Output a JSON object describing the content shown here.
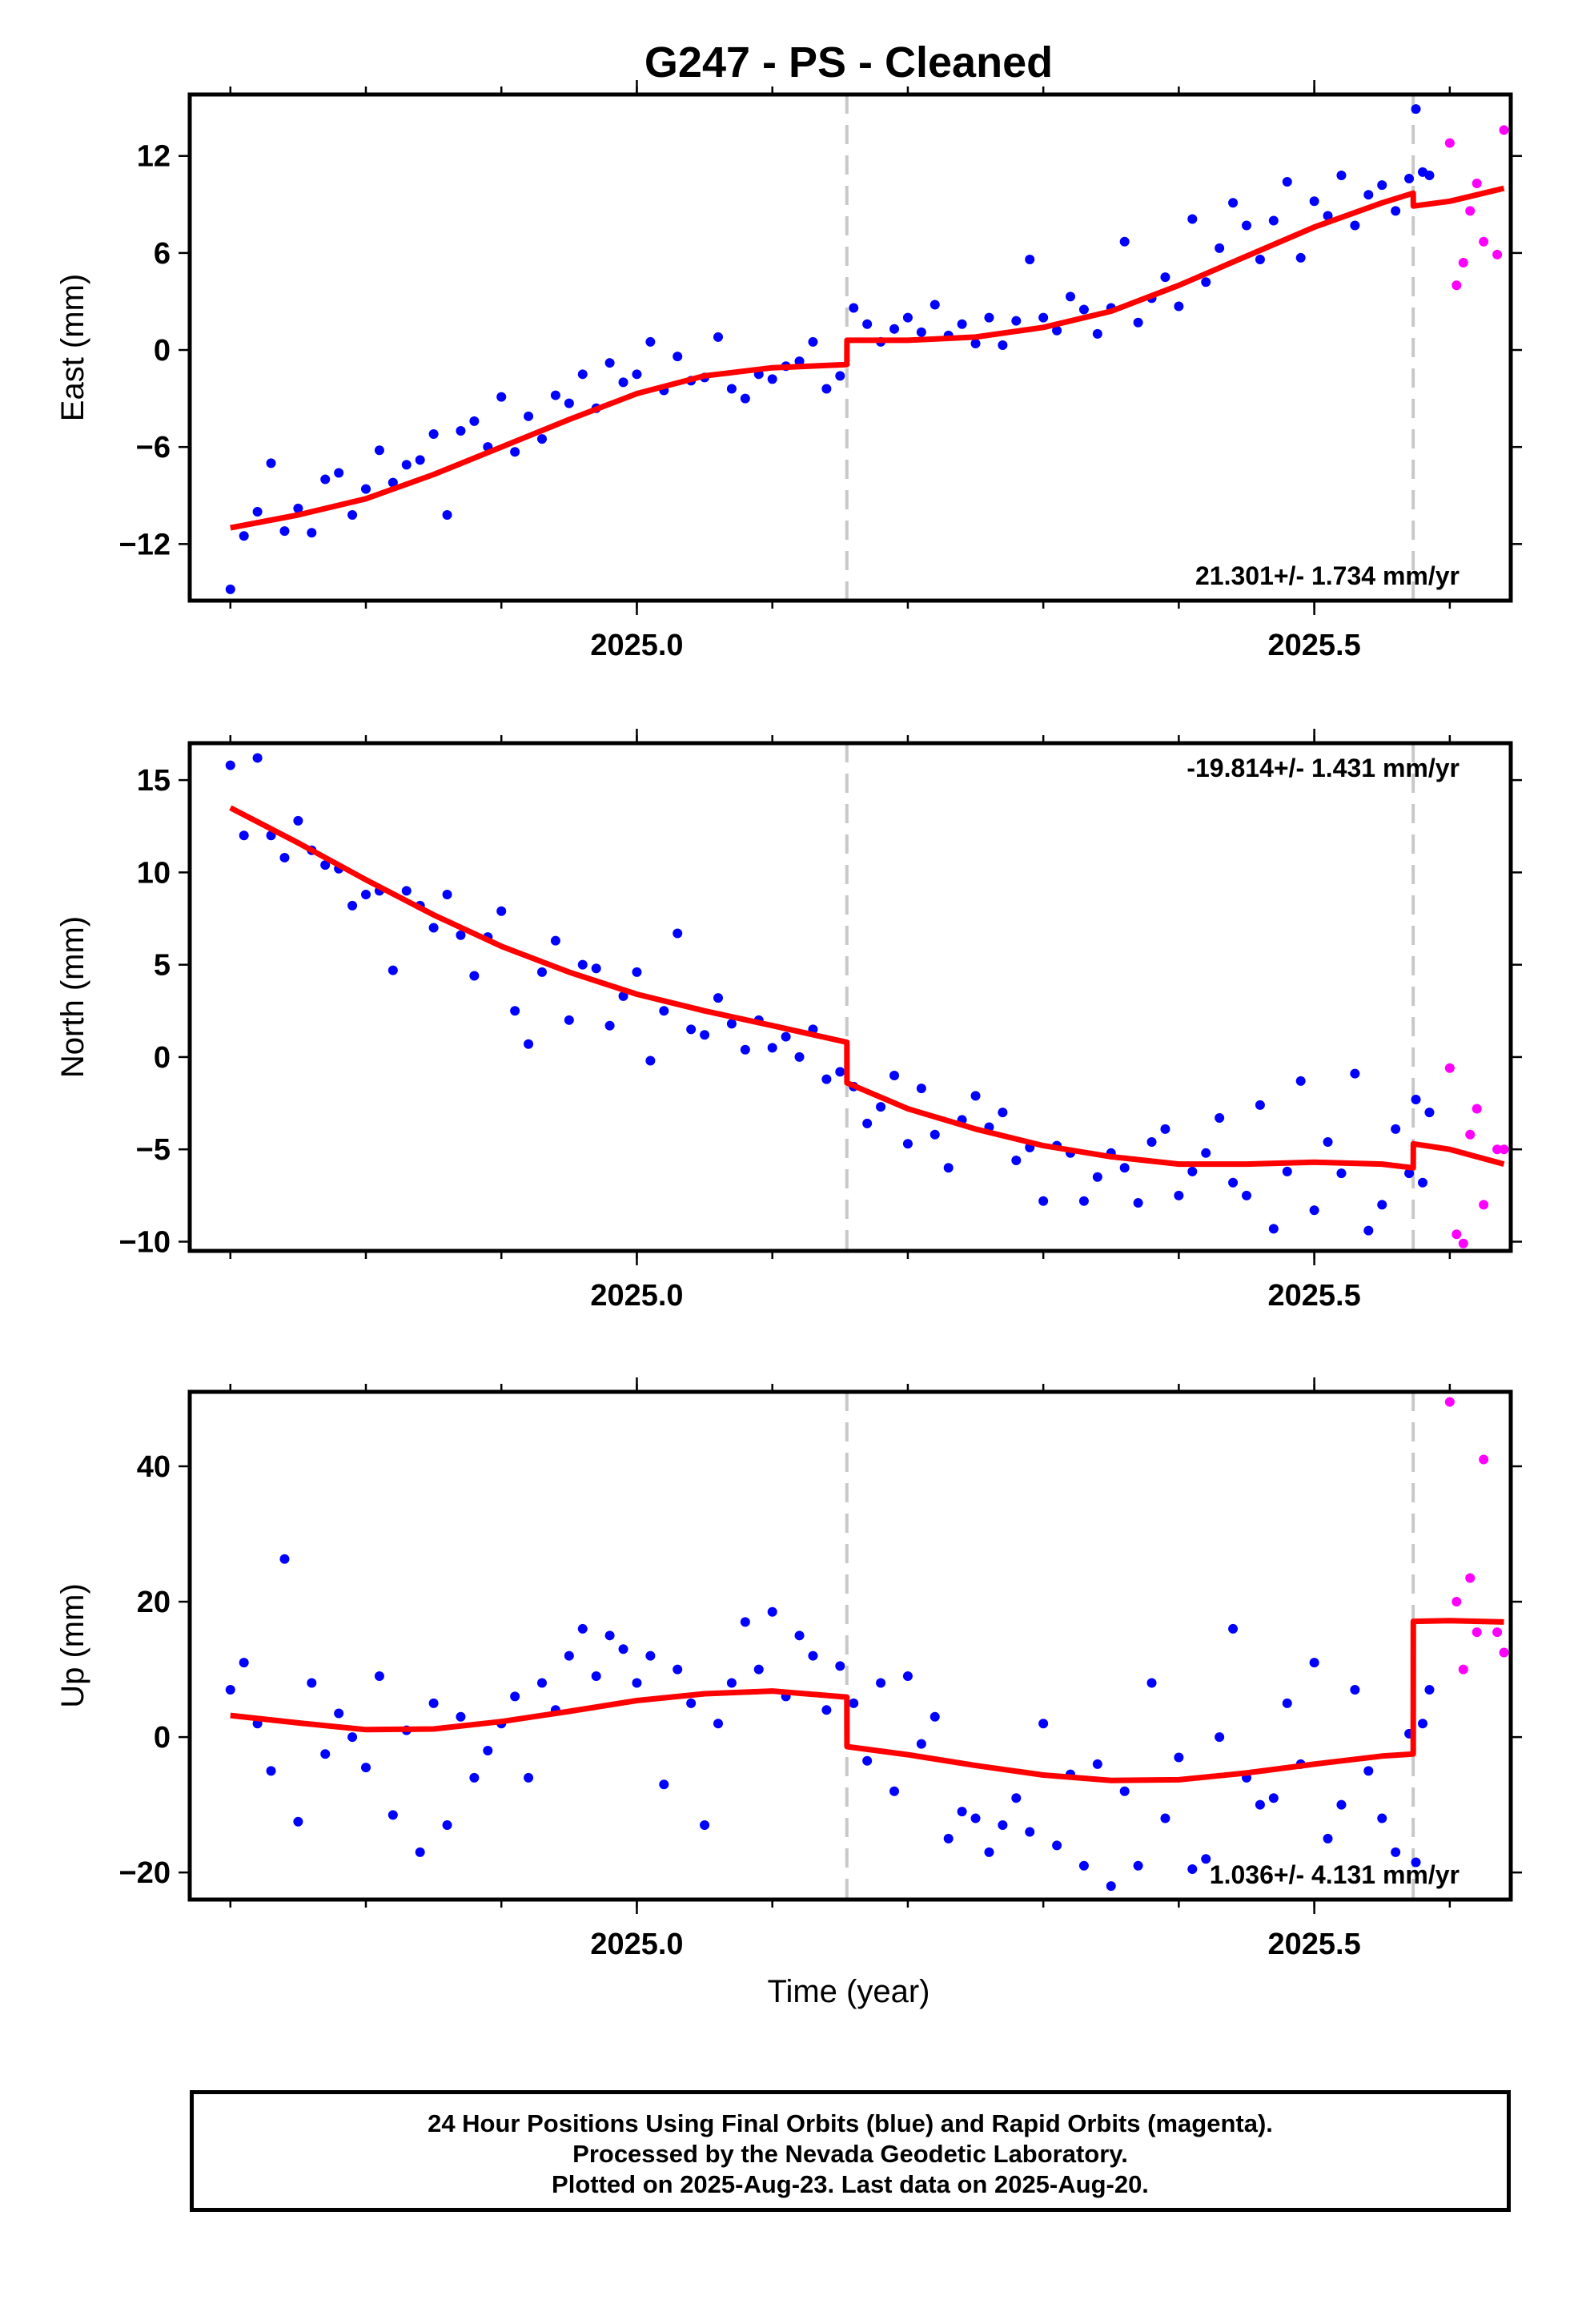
{
  "title": "G247  - PS - Cleaned",
  "x_axis_label": "Time (year)",
  "footer": {
    "line1": "24 Hour Positions Using Final Orbits (blue) and Rapid Orbits (magenta).",
    "line2": "Processed by the Nevada Geodetic Laboratory.",
    "line3": "Plotted on 2025-Aug-23. Last data on 2025-Aug-20."
  },
  "colors": {
    "final_orbits": "#0000ff",
    "rapid_orbits": "#ff00ff",
    "model_fit": "#ff0000",
    "steps": "#c8c8c8"
  },
  "chart_data": [
    {
      "type": "scatter",
      "component": "East",
      "ylabel": "East (mm)",
      "xlim": [
        2024.67,
        2025.645
      ],
      "ylim": [
        -15.5,
        15.8
      ],
      "xticks": [
        2025.0,
        2025.5
      ],
      "yticks": [
        -12,
        -6,
        0,
        6,
        12
      ],
      "ytick_labels": [
        "−12",
        "−6",
        "0",
        "6",
        "12"
      ],
      "step_epochs": [
        2025.155,
        2025.573
      ],
      "rate_label": "21.301+/- 1.734 mm/yr",
      "rate_position": "bottom-right",
      "fit": {
        "x": [
          2024.7,
          2024.75,
          2024.8,
          2024.85,
          2024.9,
          2024.95,
          2025.0,
          2025.05,
          2025.1,
          2025.155,
          2025.1551,
          2025.2,
          2025.25,
          2025.3,
          2025.35,
          2025.4,
          2025.45,
          2025.5,
          2025.55,
          2025.573,
          2025.5731,
          2025.6,
          2025.64
        ],
        "y": [
          -11.0,
          -10.2,
          -9.2,
          -7.7,
          -6.0,
          -4.3,
          -2.7,
          -1.6,
          -1.1,
          -0.9,
          0.6,
          0.6,
          0.8,
          1.4,
          2.4,
          4.0,
          5.8,
          7.6,
          9.1,
          9.7,
          8.9,
          9.2,
          10.0
        ]
      },
      "series": [
        {
          "name": "Final Orbits",
          "x": [
            2024.7,
            2024.71,
            2024.72,
            2024.73,
            2024.74,
            2024.75,
            2024.76,
            2024.77,
            2024.78,
            2024.79,
            2024.8,
            2024.81,
            2024.82,
            2024.83,
            2024.84,
            2024.85,
            2024.86,
            2024.87,
            2024.88,
            2024.89,
            2024.9,
            2024.91,
            2024.92,
            2024.93,
            2024.94,
            2024.95,
            2024.96,
            2024.97,
            2024.98,
            2024.99,
            2025.0,
            2025.01,
            2025.02,
            2025.03,
            2025.04,
            2025.05,
            2025.06,
            2025.07,
            2025.08,
            2025.09,
            2025.1,
            2025.11,
            2025.12,
            2025.13,
            2025.14,
            2025.15,
            2025.16,
            2025.17,
            2025.18,
            2025.19,
            2025.2,
            2025.21,
            2025.22,
            2025.23,
            2025.24,
            2025.25,
            2025.26,
            2025.27,
            2025.28,
            2025.29,
            2025.3,
            2025.31,
            2025.32,
            2025.33,
            2025.34,
            2025.35,
            2025.36,
            2025.37,
            2025.38,
            2025.39,
            2025.4,
            2025.41,
            2025.42,
            2025.43,
            2025.44,
            2025.45,
            2025.46,
            2025.47,
            2025.48,
            2025.49,
            2025.5,
            2025.51,
            2025.52,
            2025.53,
            2025.54,
            2025.55,
            2025.56,
            2025.57,
            2025.575,
            2025.58,
            2025.585
          ],
          "y": [
            -14.8,
            -11.5,
            -10.0,
            -7.0,
            -11.2,
            -9.8,
            -11.3,
            -8.0,
            -7.6,
            -10.2,
            -8.6,
            -6.2,
            -8.2,
            -7.1,
            -6.8,
            -5.2,
            -10.2,
            -5.0,
            -4.4,
            -6.0,
            -2.9,
            -6.3,
            -4.1,
            -5.5,
            -2.8,
            -3.3,
            -1.5,
            -3.6,
            -0.8,
            -2.0,
            -1.5,
            0.5,
            -2.5,
            -0.4,
            -1.9,
            -1.7,
            0.8,
            -2.4,
            -3.0,
            -1.5,
            -1.8,
            -1.0,
            -0.7,
            0.5,
            -2.4,
            -1.6,
            2.6,
            1.6,
            0.5,
            1.3,
            2.0,
            1.1,
            2.8,
            0.9,
            1.6,
            0.4,
            2.0,
            0.3,
            1.8,
            5.6,
            2.0,
            1.2,
            3.3,
            2.5,
            1.0,
            2.6,
            6.7,
            1.7,
            3.2,
            4.5,
            2.7,
            8.1,
            4.2,
            6.3,
            9.1,
            7.7,
            5.6,
            8.0,
            10.4,
            5.7,
            9.2,
            8.3,
            10.8,
            7.7,
            9.6,
            10.2,
            8.6,
            10.6,
            14.9,
            11.0,
            10.8
          ]
        },
        {
          "name": "Rapid Orbits",
          "x": [
            2025.6,
            2025.605,
            2025.61,
            2025.615,
            2025.62,
            2025.625,
            2025.635,
            2025.64
          ],
          "y": [
            12.8,
            4.0,
            5.4,
            8.6,
            10.3,
            6.7,
            5.9,
            13.6
          ]
        }
      ]
    },
    {
      "type": "scatter",
      "component": "North",
      "ylabel": "North (mm)",
      "xlim": [
        2024.67,
        2025.645
      ],
      "ylim": [
        -10.5,
        17.0
      ],
      "xticks": [
        2025.0,
        2025.5
      ],
      "yticks": [
        -10,
        -5,
        0,
        5,
        10,
        15
      ],
      "ytick_labels": [
        "−10",
        "−5",
        "0",
        "5",
        "10",
        "15"
      ],
      "step_epochs": [
        2025.155,
        2025.573
      ],
      "rate_label": "-19.814+/- 1.431 mm/yr",
      "rate_position": "top-right",
      "fit": {
        "x": [
          2024.7,
          2024.75,
          2024.8,
          2024.85,
          2024.9,
          2024.95,
          2025.0,
          2025.05,
          2025.1,
          2025.155,
          2025.1551,
          2025.2,
          2025.25,
          2025.3,
          2025.35,
          2025.4,
          2025.45,
          2025.5,
          2025.55,
          2025.573,
          2025.5731,
          2025.6,
          2025.64
        ],
        "y": [
          13.5,
          11.6,
          9.6,
          7.7,
          6.0,
          4.6,
          3.4,
          2.5,
          1.7,
          0.8,
          -1.4,
          -2.8,
          -3.9,
          -4.8,
          -5.4,
          -5.8,
          -5.8,
          -5.7,
          -5.8,
          -6.0,
          -4.7,
          -5.0,
          -5.8
        ]
      },
      "series": [
        {
          "name": "Final Orbits",
          "x": [
            2024.7,
            2024.71,
            2024.72,
            2024.73,
            2024.74,
            2024.75,
            2024.76,
            2024.77,
            2024.78,
            2024.79,
            2024.8,
            2024.81,
            2024.82,
            2024.83,
            2024.84,
            2024.85,
            2024.86,
            2024.87,
            2024.88,
            2024.89,
            2024.9,
            2024.91,
            2024.92,
            2024.93,
            2024.94,
            2024.95,
            2024.96,
            2024.97,
            2024.98,
            2024.99,
            2025.0,
            2025.01,
            2025.02,
            2025.03,
            2025.04,
            2025.05,
            2025.06,
            2025.07,
            2025.08,
            2025.09,
            2025.1,
            2025.11,
            2025.12,
            2025.13,
            2025.14,
            2025.15,
            2025.16,
            2025.17,
            2025.18,
            2025.19,
            2025.2,
            2025.21,
            2025.22,
            2025.23,
            2025.24,
            2025.25,
            2025.26,
            2025.27,
            2025.28,
            2025.29,
            2025.3,
            2025.31,
            2025.32,
            2025.33,
            2025.34,
            2025.35,
            2025.36,
            2025.37,
            2025.38,
            2025.39,
            2025.4,
            2025.41,
            2025.42,
            2025.43,
            2025.44,
            2025.45,
            2025.46,
            2025.47,
            2025.48,
            2025.49,
            2025.5,
            2025.51,
            2025.52,
            2025.53,
            2025.54,
            2025.55,
            2025.56,
            2025.57,
            2025.575,
            2025.58,
            2025.585
          ],
          "y": [
            15.8,
            12.0,
            16.2,
            12.0,
            10.8,
            12.8,
            11.2,
            10.4,
            10.2,
            8.2,
            8.8,
            9.0,
            4.7,
            9.0,
            8.2,
            7.0,
            8.8,
            6.6,
            4.4,
            6.5,
            7.9,
            2.5,
            0.7,
            4.6,
            6.3,
            2.0,
            5.0,
            4.8,
            1.7,
            3.3,
            4.6,
            -0.2,
            2.5,
            6.7,
            1.5,
            1.2,
            3.2,
            1.8,
            0.4,
            2.0,
            0.5,
            1.1,
            0.0,
            1.5,
            -1.2,
            -0.8,
            -1.6,
            -3.6,
            -2.7,
            -1.0,
            -4.7,
            -1.7,
            -4.2,
            -6.0,
            -3.4,
            -2.1,
            -3.8,
            -3.0,
            -5.6,
            -4.9,
            -7.8,
            -4.8,
            -5.2,
            -7.8,
            -6.5,
            -5.2,
            -6.0,
            -7.9,
            -4.6,
            -3.9,
            -7.5,
            -6.2,
            -5.2,
            -3.3,
            -6.8,
            -7.5,
            -2.6,
            -9.3,
            -6.2,
            -1.3,
            -8.3,
            -4.6,
            -6.3,
            -0.9,
            -9.4,
            -8.0,
            -3.9,
            -6.3,
            -2.3,
            -6.8,
            -3.0
          ]
        },
        {
          "name": "Rapid Orbits",
          "x": [
            2025.6,
            2025.605,
            2025.61,
            2025.615,
            2025.62,
            2025.625,
            2025.635,
            2025.64
          ],
          "y": [
            -0.6,
            -9.6,
            -10.1,
            -4.2,
            -2.8,
            -8.0,
            -5.0,
            -5.0
          ]
        }
      ]
    },
    {
      "type": "scatter",
      "component": "Up",
      "ylabel": "Up (mm)",
      "xlim": [
        2024.67,
        2025.645
      ],
      "ylim": [
        -24.0,
        51.0
      ],
      "xticks": [
        2025.0,
        2025.5
      ],
      "yticks": [
        -20,
        0,
        20,
        40
      ],
      "ytick_labels": [
        "−20",
        "0",
        "20",
        "40"
      ],
      "step_epochs": [
        2025.155,
        2025.573
      ],
      "rate_label": "1.036+/- 4.131 mm/yr",
      "rate_position": "bottom-right",
      "fit": {
        "x": [
          2024.7,
          2024.75,
          2024.8,
          2024.85,
          2024.9,
          2024.95,
          2025.0,
          2025.05,
          2025.1,
          2025.155,
          2025.1551,
          2025.2,
          2025.25,
          2025.3,
          2025.35,
          2025.4,
          2025.45,
          2025.5,
          2025.55,
          2025.573,
          2025.5731,
          2025.6,
          2025.64
        ],
        "y": [
          3.2,
          2.1,
          1.1,
          1.2,
          2.3,
          3.8,
          5.4,
          6.4,
          6.8,
          5.9,
          -1.4,
          -2.6,
          -4.2,
          -5.6,
          -6.4,
          -6.3,
          -5.3,
          -4.0,
          -2.8,
          -2.5,
          17.1,
          17.2,
          17.0
        ]
      },
      "series": [
        {
          "name": "Final Orbits",
          "x": [
            2024.7,
            2024.71,
            2024.72,
            2024.73,
            2024.74,
            2024.75,
            2024.76,
            2024.77,
            2024.78,
            2024.79,
            2024.8,
            2024.81,
            2024.82,
            2024.83,
            2024.84,
            2024.85,
            2024.86,
            2024.87,
            2024.88,
            2024.89,
            2024.9,
            2024.91,
            2024.92,
            2024.93,
            2024.94,
            2024.95,
            2024.96,
            2024.97,
            2024.98,
            2024.99,
            2025.0,
            2025.01,
            2025.02,
            2025.03,
            2025.04,
            2025.05,
            2025.06,
            2025.07,
            2025.08,
            2025.09,
            2025.1,
            2025.11,
            2025.12,
            2025.13,
            2025.14,
            2025.15,
            2025.16,
            2025.17,
            2025.18,
            2025.19,
            2025.2,
            2025.21,
            2025.22,
            2025.23,
            2025.24,
            2025.25,
            2025.26,
            2025.27,
            2025.28,
            2025.29,
            2025.3,
            2025.31,
            2025.32,
            2025.33,
            2025.34,
            2025.35,
            2025.36,
            2025.37,
            2025.38,
            2025.39,
            2025.4,
            2025.41,
            2025.42,
            2025.43,
            2025.44,
            2025.45,
            2025.46,
            2025.47,
            2025.48,
            2025.49,
            2025.5,
            2025.51,
            2025.52,
            2025.53,
            2025.54,
            2025.55,
            2025.56,
            2025.57,
            2025.575,
            2025.58,
            2025.585
          ],
          "y": [
            7.0,
            11.0,
            2.0,
            -5.0,
            26.3,
            -12.5,
            8.0,
            -2.5,
            3.5,
            0.0,
            -4.5,
            9.0,
            -11.5,
            1.0,
            -17.0,
            5.0,
            -13.0,
            3.0,
            -6.0,
            -2.0,
            2.0,
            6.0,
            -6.0,
            8.0,
            4.0,
            12.0,
            16.0,
            9.0,
            15.0,
            13.0,
            8.0,
            12.0,
            -7.0,
            10.0,
            5.0,
            -13.0,
            2.0,
            8.0,
            17.0,
            10.0,
            18.5,
            6.0,
            15.0,
            12.0,
            4.0,
            10.5,
            5.0,
            -3.5,
            8.0,
            -8.0,
            9.0,
            -1.0,
            3.0,
            -15.0,
            -11.0,
            -12.0,
            -17.0,
            -13.0,
            -9.0,
            -14.0,
            2.0,
            -16.0,
            -5.5,
            -19.0,
            -4.0,
            -22.0,
            -8.0,
            -19.0,
            8.0,
            -12.0,
            -3.0,
            -19.5,
            -18.0,
            0.0,
            16.0,
            -6.0,
            -10.0,
            -9.0,
            5.0,
            -4.0,
            11.0,
            -15.0,
            -10.0,
            7.0,
            -5.0,
            -12.0,
            -17.0,
            0.5,
            -18.5,
            2.0,
            7.0
          ]
        },
        {
          "name": "Rapid Orbits",
          "x": [
            2025.6,
            2025.605,
            2025.61,
            2025.615,
            2025.62,
            2025.625,
            2025.635,
            2025.64
          ],
          "y": [
            49.5,
            20.0,
            10.0,
            23.5,
            15.5,
            41.0,
            15.5,
            12.5
          ]
        }
      ]
    }
  ]
}
